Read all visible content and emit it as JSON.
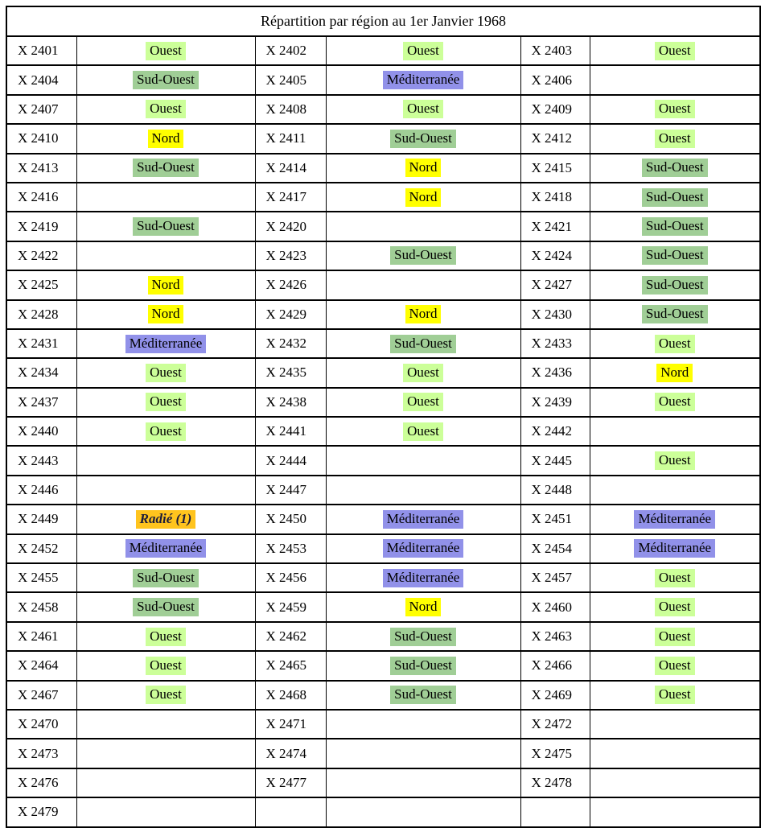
{
  "title": "Répartition par région au 1er Janvier 1968",
  "region_styles": {
    "ouest": {
      "label": "Ouest",
      "bg": "#ccff99",
      "fg": "#000000",
      "bold": false,
      "italic": false
    },
    "sud_ouest": {
      "label": "Sud-Ouest",
      "bg": "#a0ce96",
      "fg": "#000000",
      "bold": false,
      "italic": false
    },
    "mediterranee": {
      "label": "Méditerranée",
      "bg": "#9191e9",
      "fg": "#000000",
      "bold": false,
      "italic": false
    },
    "nord": {
      "label": "Nord",
      "bg": "#ffff00",
      "fg": "#000000",
      "bold": false,
      "italic": false
    },
    "radie": {
      "label": "Radié (1)",
      "bg": "#ffc41e",
      "fg": "#1c1c3a",
      "bold": true,
      "italic": true
    }
  },
  "rows": [
    [
      {
        "code": "X 2401",
        "region": "ouest"
      },
      {
        "code": "X 2402",
        "region": "ouest"
      },
      {
        "code": "X 2403",
        "region": "ouest"
      }
    ],
    [
      {
        "code": "X 2404",
        "region": "sud_ouest"
      },
      {
        "code": "X 2405",
        "region": "mediterranee"
      },
      {
        "code": "X 2406",
        "region": null
      }
    ],
    [
      {
        "code": "X 2407",
        "region": "ouest"
      },
      {
        "code": "X 2408",
        "region": "ouest"
      },
      {
        "code": "X 2409",
        "region": "ouest"
      }
    ],
    [
      {
        "code": "X 2410",
        "region": "nord"
      },
      {
        "code": "X 2411",
        "region": "sud_ouest"
      },
      {
        "code": "X 2412",
        "region": "ouest"
      }
    ],
    [
      {
        "code": "X 2413",
        "region": "sud_ouest"
      },
      {
        "code": "X 2414",
        "region": "nord"
      },
      {
        "code": "X 2415",
        "region": "sud_ouest"
      }
    ],
    [
      {
        "code": "X 2416",
        "region": null
      },
      {
        "code": "X 2417",
        "region": "nord"
      },
      {
        "code": "X 2418",
        "region": "sud_ouest"
      }
    ],
    [
      {
        "code": "X 2419",
        "region": "sud_ouest"
      },
      {
        "code": "X 2420",
        "region": null
      },
      {
        "code": "X 2421",
        "region": "sud_ouest"
      }
    ],
    [
      {
        "code": "X 2422",
        "region": null
      },
      {
        "code": "X 2423",
        "region": "sud_ouest"
      },
      {
        "code": "X 2424",
        "region": "sud_ouest"
      }
    ],
    [
      {
        "code": "X 2425",
        "region": "nord"
      },
      {
        "code": "X 2426",
        "region": null
      },
      {
        "code": "X 2427",
        "region": "sud_ouest"
      }
    ],
    [
      {
        "code": "X 2428",
        "region": "nord"
      },
      {
        "code": "X 2429",
        "region": "nord"
      },
      {
        "code": "X 2430",
        "region": "sud_ouest"
      }
    ],
    [
      {
        "code": "X 2431",
        "region": "mediterranee"
      },
      {
        "code": "X 2432",
        "region": "sud_ouest"
      },
      {
        "code": "X 2433",
        "region": "ouest"
      }
    ],
    [
      {
        "code": "X 2434",
        "region": "ouest"
      },
      {
        "code": "X 2435",
        "region": "ouest"
      },
      {
        "code": "X 2436",
        "region": "nord"
      }
    ],
    [
      {
        "code": "X 2437",
        "region": "ouest"
      },
      {
        "code": "X 2438",
        "region": "ouest"
      },
      {
        "code": "X 2439",
        "region": "ouest"
      }
    ],
    [
      {
        "code": "X 2440",
        "region": "ouest"
      },
      {
        "code": "X 2441",
        "region": "ouest"
      },
      {
        "code": "X 2442",
        "region": null
      }
    ],
    [
      {
        "code": "X 2443",
        "region": null
      },
      {
        "code": "X 2444",
        "region": null
      },
      {
        "code": "X 2445",
        "region": "ouest"
      }
    ],
    [
      {
        "code": "X 2446",
        "region": null
      },
      {
        "code": "X 2447",
        "region": null
      },
      {
        "code": "X 2448",
        "region": null
      }
    ],
    [
      {
        "code": "X 2449",
        "region": "radie"
      },
      {
        "code": "X 2450",
        "region": "mediterranee"
      },
      {
        "code": "X 2451",
        "region": "mediterranee"
      }
    ],
    [
      {
        "code": "X 2452",
        "region": "mediterranee"
      },
      {
        "code": "X 2453",
        "region": "mediterranee"
      },
      {
        "code": "X 2454",
        "region": "mediterranee"
      }
    ],
    [
      {
        "code": "X 2455",
        "region": "sud_ouest"
      },
      {
        "code": "X 2456",
        "region": "mediterranee"
      },
      {
        "code": "X 2457",
        "region": "ouest"
      }
    ],
    [
      {
        "code": "X 2458",
        "region": "sud_ouest"
      },
      {
        "code": "X 2459",
        "region": "nord"
      },
      {
        "code": "X 2460",
        "region": "ouest"
      }
    ],
    [
      {
        "code": "X 2461",
        "region": "ouest"
      },
      {
        "code": "X 2462",
        "region": "sud_ouest"
      },
      {
        "code": "X 2463",
        "region": "ouest"
      }
    ],
    [
      {
        "code": "X 2464",
        "region": "ouest"
      },
      {
        "code": "X 2465",
        "region": "sud_ouest"
      },
      {
        "code": "X 2466",
        "region": "ouest"
      }
    ],
    [
      {
        "code": "X 2467",
        "region": "ouest"
      },
      {
        "code": "X 2468",
        "region": "sud_ouest"
      },
      {
        "code": "X 2469",
        "region": "ouest"
      }
    ],
    [
      {
        "code": "X 2470",
        "region": null
      },
      {
        "code": "X 2471",
        "region": null
      },
      {
        "code": "X 2472",
        "region": null
      }
    ],
    [
      {
        "code": "X 2473",
        "region": null
      },
      {
        "code": "X 2474",
        "region": null
      },
      {
        "code": "X 2475",
        "region": null
      }
    ],
    [
      {
        "code": "X 2476",
        "region": null
      },
      {
        "code": "X 2477",
        "region": null
      },
      {
        "code": "X 2478",
        "region": null
      }
    ],
    [
      {
        "code": "X 2479",
        "region": null
      },
      {
        "code": "",
        "region": null
      },
      {
        "code": "",
        "region": null
      }
    ]
  ]
}
